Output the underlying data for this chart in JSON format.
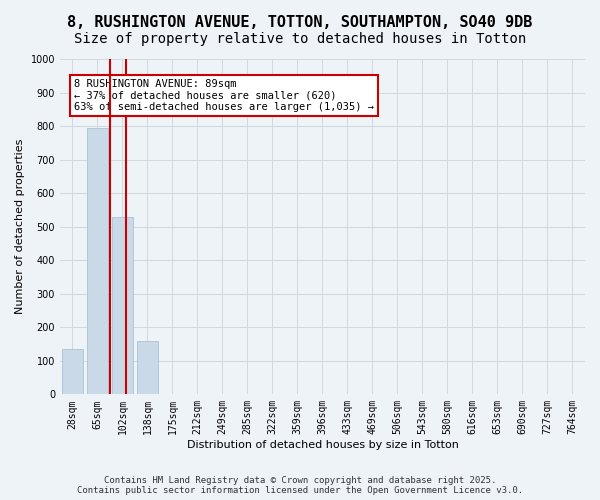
{
  "title": "8, RUSHINGTON AVENUE, TOTTON, SOUTHAMPTON, SO40 9DB",
  "subtitle": "Size of property relative to detached houses in Totton",
  "xlabel": "Distribution of detached houses by size in Totton",
  "ylabel": "Number of detached properties",
  "categories": [
    "28sqm",
    "65sqm",
    "102sqm",
    "138sqm",
    "175sqm",
    "212sqm",
    "249sqm",
    "285sqm",
    "322sqm",
    "359sqm",
    "396sqm",
    "433sqm",
    "469sqm",
    "506sqm",
    "543sqm",
    "580sqm",
    "616sqm",
    "653sqm",
    "690sqm",
    "727sqm",
    "764sqm"
  ],
  "values": [
    135,
    795,
    530,
    160,
    0,
    0,
    0,
    0,
    0,
    0,
    0,
    0,
    0,
    0,
    0,
    0,
    0,
    0,
    0,
    0,
    0
  ],
  "bar_color": "#c9d9e8",
  "bar_edge_color": "#a0bcd0",
  "grid_color": "#d0d8e0",
  "background_color": "#eef3f8",
  "vline_x": 2,
  "vline_color": "#cc0000",
  "annotation_text": "8 RUSHINGTON AVENUE: 89sqm\n← 37% of detached houses are smaller (620)\n63% of semi-detached houses are larger (1,035) →",
  "annotation_box_color": "#ffffff",
  "annotation_box_edge": "#cc0000",
  "ylim": [
    0,
    1000
  ],
  "yticks": [
    0,
    100,
    200,
    300,
    400,
    500,
    600,
    700,
    800,
    900,
    1000
  ],
  "footnote": "Contains HM Land Registry data © Crown copyright and database right 2025.\nContains public sector information licensed under the Open Government Licence v3.0.",
  "title_fontsize": 11,
  "subtitle_fontsize": 10,
  "axis_label_fontsize": 8,
  "tick_fontsize": 7,
  "annotation_fontsize": 7.5,
  "footnote_fontsize": 6.5
}
